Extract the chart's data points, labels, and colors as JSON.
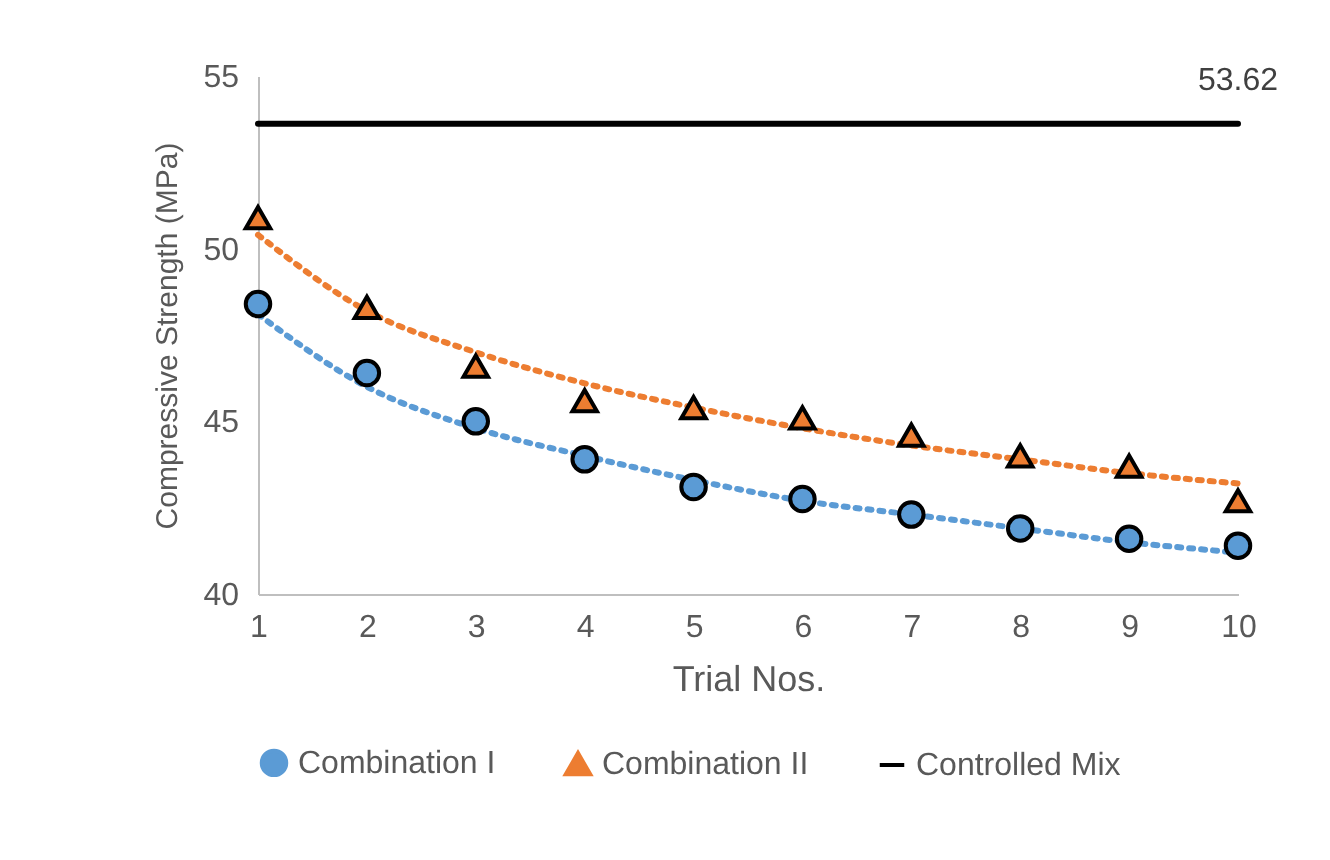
{
  "chart_data": {
    "type": "scatter",
    "xlabel": "Trial Nos.",
    "ylabel": "Compressive Strength (MPa)",
    "x": [
      1,
      2,
      3,
      4,
      5,
      6,
      7,
      8,
      9,
      10
    ],
    "xlim": [
      1,
      10
    ],
    "xticks": [
      1,
      2,
      3,
      4,
      5,
      6,
      7,
      8,
      9,
      10
    ],
    "ylim": [
      40,
      55
    ],
    "yticks": [
      40,
      45,
      50,
      55
    ],
    "grid": false,
    "legend": "bottom",
    "series": [
      {
        "name": "Combination I",
        "marker": "circle",
        "color": "#5b9bd5",
        "values": [
          48.4,
          46.4,
          45.0,
          43.9,
          43.1,
          42.75,
          42.3,
          41.9,
          41.6,
          41.4
        ]
      },
      {
        "name": "Combination II",
        "marker": "triangle",
        "color": "#ed7d31",
        "values": [
          50.9,
          48.3,
          46.6,
          45.6,
          45.4,
          45.1,
          44.6,
          44.0,
          43.7,
          42.7
        ]
      },
      {
        "name": "Controlled Mix",
        "type": "line",
        "marker": "none",
        "line_style": "solid",
        "color": "#000000",
        "values": [
          53.62,
          53.62,
          53.62,
          53.62,
          53.62,
          53.62,
          53.62,
          53.62,
          53.62,
          53.62
        ],
        "value_labels": [
          null,
          null,
          null,
          null,
          null,
          null,
          null,
          null,
          null,
          "53.62"
        ]
      },
      {
        "type": "line",
        "marker": "none",
        "line_style": "dotted",
        "color": "#5b9bd5",
        "values": [
          48.1,
          46.0,
          44.8,
          44.0,
          43.3,
          42.7,
          42.3,
          41.9,
          41.5,
          41.2
        ]
      },
      {
        "type": "line",
        "marker": "none",
        "line_style": "dotted",
        "color": "#ed7d31",
        "values": [
          50.4,
          48.2,
          47.0,
          46.1,
          45.4,
          44.8,
          44.3,
          43.9,
          43.5,
          43.2
        ]
      }
    ]
  }
}
